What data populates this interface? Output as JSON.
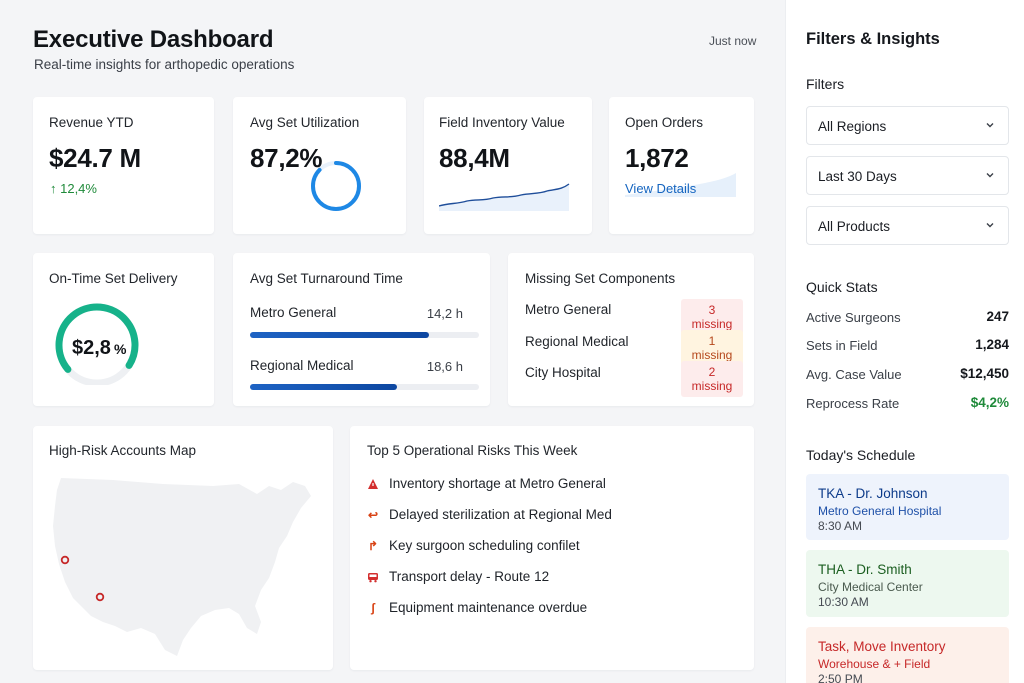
{
  "header": {
    "title": "Executive Dashboard",
    "subtitle": "Real-time insights for arthopedic operations",
    "timestamp": "Just now"
  },
  "kpis": {
    "revenue": {
      "label": "Revenue YTD",
      "value": "$24.7 M",
      "delta": "↑ 12,4%"
    },
    "utilization": {
      "label": "Avg Set Utilization",
      "value": "87,2%",
      "ring_fraction": 0.872
    },
    "inventory": {
      "label": "Field Inventory Value",
      "value": "88,4M"
    },
    "orders": {
      "label": "Open Orders",
      "value": "1,872",
      "link": "View Details"
    }
  },
  "delivery": {
    "label": "On-Time Set Delivery",
    "value": "$2,8",
    "unit": "%",
    "gauge_fraction": 0.7
  },
  "turnaround": {
    "label": "Avg Set Turnaround Time",
    "rows": [
      {
        "name": "Metro General",
        "value": "14,2 h",
        "fraction": 0.78
      },
      {
        "name": "Regional Medical",
        "value": "18,6 h",
        "fraction": 0.64
      }
    ]
  },
  "missing": {
    "label": "Missing Set Components",
    "rows": [
      {
        "name": "Metro General",
        "badge": "3 missing",
        "tone": "red"
      },
      {
        "name": "Regional Medical",
        "badge": "1 missing",
        "tone": "amber"
      },
      {
        "name": "City Hospital",
        "badge": "2 missing",
        "tone": "red"
      }
    ]
  },
  "map": {
    "label": "High-Risk Accounts Map",
    "marker_color": "#c62828"
  },
  "risks": {
    "label": "Top 5 Operational Risks This Week",
    "items": [
      {
        "text": "Inventory shortage at Metro General",
        "icon": "warning-triangle-icon"
      },
      {
        "text": "Delayed sterilization at Regional Med",
        "icon": "return-arrow-icon"
      },
      {
        "text": "Key surgoon scheduling confilet",
        "icon": "hook-icon"
      },
      {
        "text": "Transport delay - Route 12",
        "icon": "truck-icon"
      },
      {
        "text": "Equipment maintenance overdue",
        "icon": "wrench-icon"
      }
    ]
  },
  "sidebar": {
    "title": "Filters & Insights",
    "filters_label": "Filters",
    "filters": [
      "All Regions",
      "Last 30 Days",
      "All Products"
    ],
    "quick_stats_label": "Quick Stats",
    "stats": [
      {
        "label": "Active Surgeons",
        "value": "247"
      },
      {
        "label": "Sets in Field",
        "value": "1,284"
      },
      {
        "label": "Avg. Case Value",
        "value": "$12,450"
      },
      {
        "label": "Reprocess Rate",
        "value": "$4,2%"
      }
    ],
    "schedule_label": "Today's Schedule",
    "schedule": [
      {
        "title": "TKA - Dr. Johnson",
        "sub": "Metro General Hospital",
        "time": "8:30 AM"
      },
      {
        "title": "THA - Dr. Smith",
        "sub": "City Medical Center",
        "time": "10:30 AM"
      },
      {
        "title": "Task, Move Inventory",
        "sub": "Worehouse & + Field",
        "time": "2:50 PM"
      }
    ]
  },
  "colors": {
    "accent_blue": "#1e88e5",
    "teal": "#16b28a",
    "positive": "#1f8a3a",
    "danger": "#c62828"
  }
}
